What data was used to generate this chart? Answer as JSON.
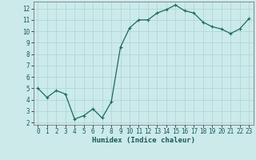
{
  "x": [
    0,
    1,
    2,
    3,
    4,
    5,
    6,
    7,
    8,
    9,
    10,
    11,
    12,
    13,
    14,
    15,
    16,
    17,
    18,
    19,
    20,
    21,
    22,
    23
  ],
  "y": [
    5.0,
    4.2,
    4.8,
    4.5,
    2.3,
    2.6,
    3.2,
    2.4,
    3.8,
    8.6,
    10.3,
    11.0,
    11.0,
    11.6,
    11.9,
    12.3,
    11.8,
    11.6,
    10.8,
    10.4,
    10.2,
    9.8,
    10.2,
    11.1
  ],
  "line_color": "#1a6b5a",
  "marker": "+",
  "marker_size": 3,
  "line_width": 0.9,
  "bg_color": "#cceaea",
  "grid_color": "#aad4d4",
  "xlabel": "Humidex (Indice chaleur)",
  "xlim": [
    -0.5,
    23.5
  ],
  "ylim": [
    1.8,
    12.6
  ],
  "yticks": [
    2,
    3,
    4,
    5,
    6,
    7,
    8,
    9,
    10,
    11,
    12
  ],
  "xticks": [
    0,
    1,
    2,
    3,
    4,
    5,
    6,
    7,
    8,
    9,
    10,
    11,
    12,
    13,
    14,
    15,
    16,
    17,
    18,
    19,
    20,
    21,
    22,
    23
  ],
  "tick_fontsize": 5.5,
  "xlabel_fontsize": 6.5
}
